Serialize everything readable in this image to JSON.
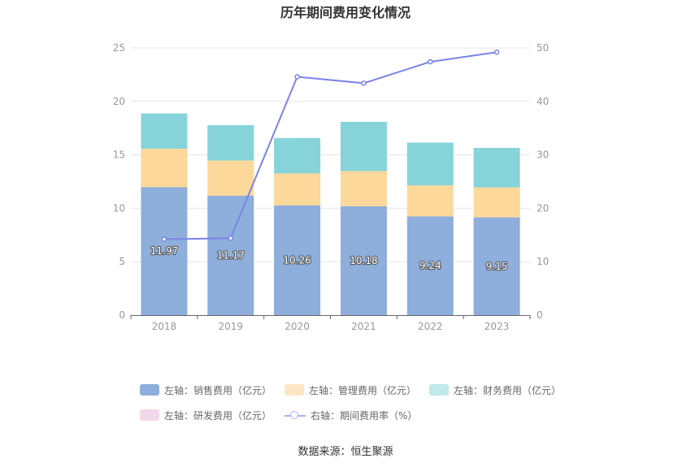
{
  "chart_data": {
    "type": "bar",
    "title": "历年期间费用变化情况",
    "categories": [
      "2018",
      "2019",
      "2020",
      "2021",
      "2022",
      "2023"
    ],
    "stacked": true,
    "series": [
      {
        "name": "左轴：销售费用（亿元）",
        "axis": "left",
        "type": "bar",
        "color": "#8eaedb",
        "values": [
          11.97,
          11.17,
          10.26,
          10.18,
          9.24,
          9.15
        ],
        "labels_shown": true
      },
      {
        "name": "左轴：管理费用（亿元）",
        "axis": "left",
        "type": "bar",
        "color": "#fdd89b",
        "values": [
          3.6,
          3.3,
          3.0,
          3.3,
          2.9,
          2.8
        ]
      },
      {
        "name": "左轴：财务费用（亿元）",
        "axis": "left",
        "type": "bar",
        "color": "#86d4d9",
        "values": [
          3.3,
          3.3,
          3.3,
          4.6,
          4.0,
          3.7
        ]
      },
      {
        "name": "左轴：研发费用（亿元）",
        "axis": "left",
        "type": "bar",
        "color": "#f2d8ec",
        "values": [
          0,
          0,
          0,
          0,
          0,
          0
        ]
      },
      {
        "name": "右轴：期间费用率（%）",
        "axis": "right",
        "type": "line",
        "color": "#7b83e8",
        "values": [
          14.2,
          14.4,
          44.6,
          43.4,
          47.4,
          49.2
        ]
      }
    ],
    "left_axis": {
      "min": 0,
      "max": 25,
      "ticks": [
        0,
        5,
        10,
        15,
        20,
        25
      ]
    },
    "right_axis": {
      "min": 0,
      "max": 50,
      "ticks": [
        0,
        10,
        20,
        30,
        40,
        50
      ]
    },
    "grid": true,
    "legend_position": "bottom"
  },
  "legend": {
    "sales": "左轴：销售费用（亿元）",
    "admin": "左轴：管理费用（亿元）",
    "finance": "左轴：财务费用（亿元）",
    "rd": "左轴：研发费用（亿元）",
    "rate": "右轴：期间费用率（%）"
  },
  "colors": {
    "sales": "#8eaedb",
    "admin": "#fde6c4",
    "finance": "#bfe9ea",
    "rd": "#f2d8ec"
  },
  "source": "数据来源：恒生聚源"
}
